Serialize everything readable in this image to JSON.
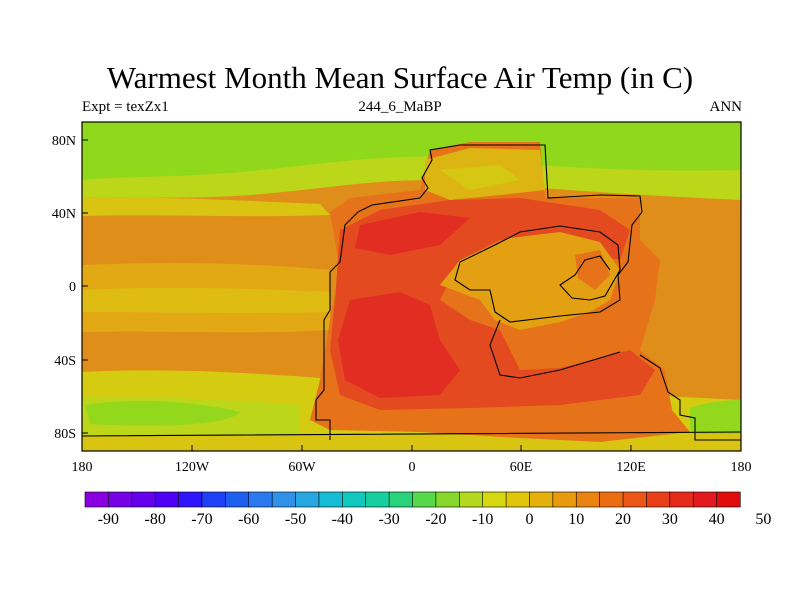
{
  "map": {
    "title": "Warmest Month Mean Surface Air Temp (in C)",
    "left_label": "Expt = texZx1",
    "center_label": "244_6_MaBP",
    "right_label": "ANN",
    "x_ticks": [
      "180",
      "120W",
      "60W",
      "0",
      "60E",
      "120E",
      "180"
    ],
    "y_ticks": [
      "80N",
      "40N",
      "0",
      "40S",
      "80S"
    ]
  },
  "colorbar": {
    "labels": [
      "-90",
      "-80",
      "-70",
      "-60",
      "-50",
      "-40",
      "-30",
      "-20",
      "-10",
      "0",
      "10",
      "20",
      "30",
      "40",
      "50"
    ],
    "colors": [
      "#8a00e0",
      "#7700e6",
      "#6400ec",
      "#4d00f2",
      "#2f14ff",
      "#1f41f5",
      "#1f5ff0",
      "#2b79ee",
      "#2f91e8",
      "#25a8e2",
      "#14bcd6",
      "#12c7bd",
      "#16cf9e",
      "#2ad37a",
      "#55d94b",
      "#86d92c",
      "#b4d81d",
      "#d6d80f",
      "#e0c60b",
      "#e5b00b",
      "#e89a0c",
      "#ea830f",
      "#ec6c12",
      "#eb5616",
      "#e9401a",
      "#e62b1d",
      "#e3191f",
      "#e00c0c"
    ]
  },
  "legend_colors": {
    "cold_band": "#8bd91e",
    "cool": "#c6d816",
    "warm_ocean": "#e59a14",
    "warm_land": "#e8721a",
    "hot": "#e64a1f",
    "very_hot": "#e32c22",
    "coast_outline": "#000000"
  }
}
